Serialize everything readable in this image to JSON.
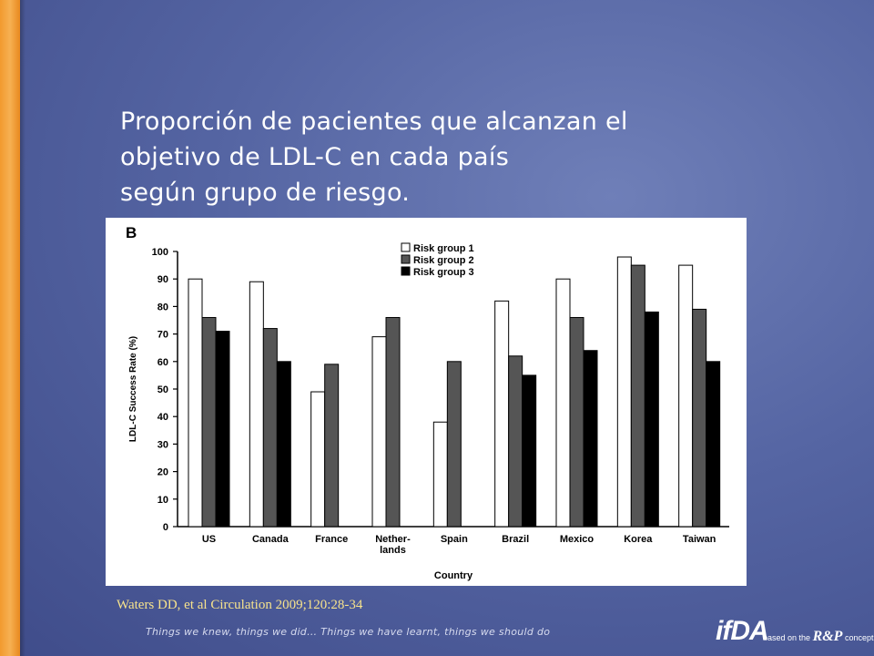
{
  "slide": {
    "title_lines": [
      "Proporción de pacientes que alcanzan el",
      "objetivo de LDL-C en cada país",
      "según grupo de riesgo."
    ],
    "citation": "Waters DD, et al Circulation 2009;120:28-34",
    "footer": "Things we knew, things we did… Things we have learnt, things we should do",
    "logo": {
      "main": "ifDA",
      "based_on": "based on the",
      "mark": "R&P",
      "concept": "concept"
    }
  },
  "chart_data": {
    "type": "bar",
    "panel_label": "B",
    "categories": [
      "US",
      "Canada",
      "France",
      "Nether-\nlands",
      "Spain",
      "Brazil",
      "Mexico",
      "Korea",
      "Taiwan"
    ],
    "series": [
      {
        "name": "Risk group 1",
        "color": "#ffffff",
        "values": [
          90,
          89,
          49,
          69,
          38,
          82,
          90,
          98,
          95
        ]
      },
      {
        "name": "Risk group 2",
        "color": "#555555",
        "values": [
          76,
          72,
          59,
          76,
          60,
          62,
          76,
          95,
          79
        ]
      },
      {
        "name": "Risk group 3",
        "color": "#000000",
        "values": [
          71,
          60,
          null,
          null,
          null,
          55,
          64,
          78,
          60
        ]
      }
    ],
    "xlabel": "Country",
    "ylabel": "LDL-C Success Rate (%)",
    "ylim": [
      0,
      100
    ],
    "yticks": [
      0,
      10,
      20,
      30,
      40,
      50,
      60,
      70,
      80,
      90,
      100
    ],
    "grid": false,
    "legend": "top-center"
  }
}
